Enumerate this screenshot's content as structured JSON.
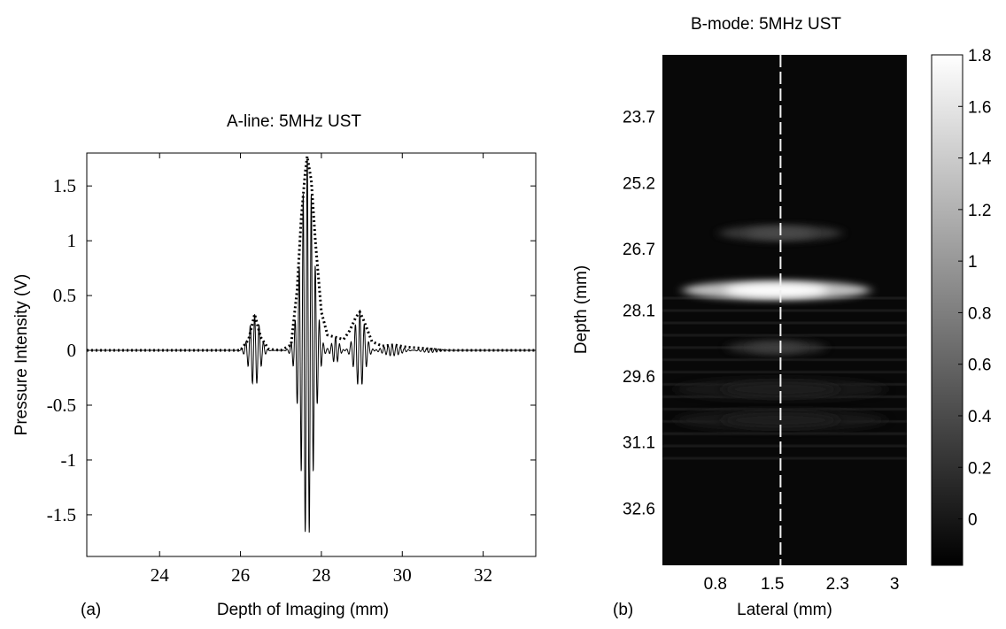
{
  "chart_data": [
    {
      "panel_label": "(a)",
      "type": "line",
      "title": "A-line: 5MHz UST",
      "xlabel": "Depth of Imaging (mm)",
      "ylabel": "Pressure Intensity (V)",
      "xlim": [
        22.2,
        33.3
      ],
      "ylim": [
        -1.88,
        1.8
      ],
      "xticks": [
        24,
        26,
        28,
        30,
        32
      ],
      "yticks": [
        1.5,
        1,
        0.5,
        0,
        -0.5,
        -1,
        -1.5
      ],
      "xtick_labels": [
        "24",
        "26",
        "28",
        "30",
        "32"
      ],
      "ytick_labels": [
        "1.5",
        "1",
        "0.5",
        "0",
        "-0.5",
        "-1",
        "-1.5"
      ],
      "grid": false,
      "series": [
        {
          "style": "solid-thin",
          "color": "#000000",
          "description_values": "raw RF signal",
          "packets": [
            {
              "center": 26.35,
              "width": 0.18,
              "amp": 0.33,
              "period": 0.11
            },
            {
              "center": 27.65,
              "width": 0.22,
              "amp": 1.75,
              "period": 0.1
            },
            {
              "center": 28.35,
              "width": 0.12,
              "amp": 0.12,
              "period": 0.1
            },
            {
              "center": 28.95,
              "width": 0.18,
              "amp": 0.34,
              "period": 0.11
            },
            {
              "center": 29.75,
              "width": 0.3,
              "amp": 0.05,
              "period": 0.1
            },
            {
              "center": 30.7,
              "width": 0.3,
              "amp": 0.02,
              "period": 0.1
            }
          ]
        },
        {
          "style": "dotted-thick",
          "color": "#000000",
          "envelope": true,
          "x": [
            22.2,
            26.0,
            26.2,
            26.35,
            26.5,
            26.7,
            27.0,
            27.25,
            27.4,
            27.5,
            27.6,
            27.65,
            27.75,
            27.85,
            28.0,
            28.15,
            28.35,
            28.55,
            28.7,
            28.85,
            28.95,
            29.05,
            29.25,
            29.5,
            29.8,
            30.1,
            30.5,
            31.0,
            33.3
          ],
          "y": [
            0,
            0.0,
            0.1,
            0.33,
            0.12,
            0.01,
            0.0,
            0.05,
            0.55,
            1.2,
            1.62,
            1.77,
            1.55,
            1.0,
            0.35,
            0.14,
            0.12,
            0.1,
            0.18,
            0.3,
            0.35,
            0.27,
            0.08,
            0.04,
            0.05,
            0.03,
            0.02,
            0.0,
            0.0
          ]
        }
      ]
    },
    {
      "panel_label": "(b)",
      "type": "heatmap",
      "title": "B-mode: 5MHz UST",
      "xlabel": "Lateral (mm)",
      "ylabel": "Depth (mm)",
      "xlim": [
        0.15,
        3.15
      ],
      "ylim": [
        22.3,
        33.9
      ],
      "xticks": [
        0.8,
        1.5,
        2.3,
        3
      ],
      "xtick_labels": [
        "0.8",
        "1.5",
        "2.3",
        "3"
      ],
      "yticks": [
        23.7,
        25.2,
        26.7,
        28.1,
        29.6,
        31.1,
        32.6
      ],
      "ytick_labels": [
        "23.7",
        "25.2",
        "26.7",
        "28.1",
        "29.6",
        "31.1",
        "32.6"
      ],
      "colormap": "gray",
      "colorbar": {
        "range": [
          -0.18,
          1.8
        ],
        "ticks": [
          1.8,
          1.6,
          1.4,
          1.2,
          1,
          0.8,
          0.6,
          0.4,
          0.2,
          0
        ],
        "tick_labels": [
          "1.8",
          "1.6",
          "1.4",
          "1.2",
          "1",
          "0.8",
          "0.6",
          "0.4",
          "0.2",
          "0"
        ]
      },
      "reference_line": {
        "lateral": 1.6,
        "style": "dashed",
        "color": "#ffffff"
      },
      "background_value": -0.12,
      "features": [
        {
          "depth": 26.35,
          "lateral_center": 1.6,
          "lateral_halfwidth": 0.75,
          "thickness": 0.18,
          "value": 0.38
        },
        {
          "depth": 27.65,
          "lateral_center": 1.55,
          "lateral_halfwidth": 1.15,
          "thickness": 0.22,
          "value": 1.78
        },
        {
          "depth": 28.95,
          "lateral_center": 1.55,
          "lateral_halfwidth": 0.6,
          "thickness": 0.16,
          "value": 0.3
        },
        {
          "depth": 29.9,
          "lateral_center": 1.6,
          "lateral_halfwidth": 1.3,
          "thickness": 0.25,
          "value": 0.05
        },
        {
          "depth": 30.6,
          "lateral_center": 1.6,
          "lateral_halfwidth": 1.3,
          "thickness": 0.25,
          "value": 0.02
        }
      ]
    }
  ]
}
